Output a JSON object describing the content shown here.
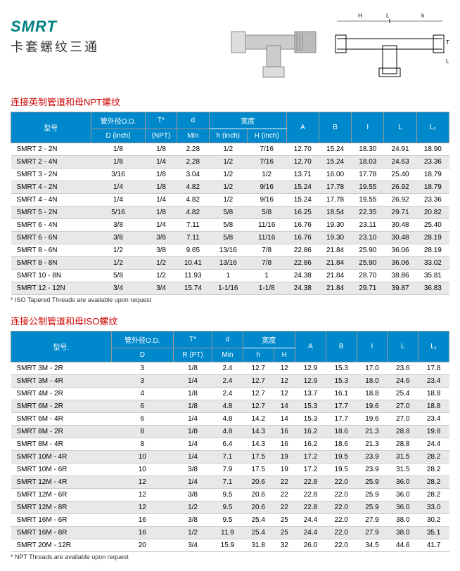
{
  "header": {
    "title": "SMRT",
    "subtitle": "卡套螺纹三通"
  },
  "table1": {
    "title": "连接英制管道和母NPT螺纹",
    "headers": {
      "model": "型号",
      "od": "管外径O.D.",
      "od_sub": "D (inch)",
      "t": "T*",
      "t_sub": "(NPT)",
      "d": "d",
      "d_sub": "Min",
      "width": "宽度",
      "h": "h (inch)",
      "H": "H (inch)",
      "A": "A",
      "B": "B",
      "I": "I",
      "L": "L",
      "L1": "L₁"
    },
    "rows": [
      [
        "SMRT  2 -  2N",
        "1/8",
        "1/8",
        "2.28",
        "1/2",
        "7/16",
        "12.70",
        "15.24",
        "18.30",
        "24.91",
        "18.90"
      ],
      [
        "SMRT  2 -  4N",
        "1/8",
        "1/4",
        "2.28",
        "1/2",
        "7/16",
        "12.70",
        "15.24",
        "18.03",
        "24.63",
        "23.36"
      ],
      [
        "SMRT  3 -  2N",
        "3/16",
        "1/8",
        "3.04",
        "1/2",
        "1/2",
        "13.71",
        "16.00",
        "17.78",
        "25.40",
        "18.79"
      ],
      [
        "SMRT  4 -  2N",
        "1/4",
        "1/8",
        "4.82",
        "1/2",
        "9/16",
        "15.24",
        "17.78",
        "19.55",
        "26.92",
        "18.79"
      ],
      [
        "SMRT  4 -  4N",
        "1/4",
        "1/4",
        "4.82",
        "1/2",
        "9/16",
        "15.24",
        "17.78",
        "19.55",
        "26.92",
        "23.36"
      ],
      [
        "SMRT  5 -  2N",
        "5/16",
        "1/8",
        "4.82",
        "5/8",
        "5/8",
        "16.25",
        "18.54",
        "22.35",
        "29.71",
        "20.82"
      ],
      [
        "SMRT  6 -  4N",
        "3/8",
        "1/4",
        "7.11",
        "5/8",
        "11/16",
        "16.76",
        "19.30",
        "23.11",
        "30.48",
        "25.40"
      ],
      [
        "SMRT  6 -  6N",
        "3/8",
        "3/8",
        "7.11",
        "5/8",
        "11/16",
        "16.76",
        "19.30",
        "23.10",
        "30.48",
        "28.19"
      ],
      [
        "SMRT  8 -  6N",
        "1/2",
        "3/8",
        "9.65",
        "13/16",
        "7/8",
        "22.86",
        "21.84",
        "25.90",
        "36.06",
        "28.19"
      ],
      [
        "SMRT  8 -  8N",
        "1/2",
        "1/2",
        "10.41",
        "13/16",
        "7/8",
        "22.86",
        "21.84",
        "25.90",
        "36.06",
        "33.02"
      ],
      [
        "SMRT 10 -  8N",
        "5/8",
        "1/2",
        "11.93",
        "1",
        "1",
        "24.38",
        "21.84",
        "28.70",
        "38.86",
        "35.81"
      ],
      [
        "SMRT 12 - 12N",
        "3/4",
        "3/4",
        "15.74",
        "1-1/16",
        "1-1/8",
        "24.38",
        "21.84",
        "29.71",
        "39.87",
        "36.83"
      ]
    ],
    "footnote": "* ISO Tapered Threads are available upon request"
  },
  "table2": {
    "title": "连接公制管道和母ISO螺纹",
    "headers": {
      "model": "型号.",
      "od": "管外径O.D.",
      "od_sub": "D",
      "t": "T*",
      "t_sub": "R (PT)",
      "d": "d",
      "d_sub": "Min",
      "width": "宽度",
      "h": "h",
      "H": "H",
      "A": "A",
      "B": "B",
      "I": "I",
      "L": "L",
      "L1": "L₁"
    },
    "rows": [
      [
        "SMRT  3M -  2R",
        "3",
        "1/8",
        "2.4",
        "12.7",
        "12",
        "12.9",
        "15.3",
        "17.0",
        "23.6",
        "17.8"
      ],
      [
        "SMRT  3M -  4R",
        "3",
        "1/4",
        "2.4",
        "12.7",
        "12",
        "12.9",
        "15.3",
        "18.0",
        "24.6",
        "23.4"
      ],
      [
        "SMRT  4M -  2R",
        "4",
        "1/8",
        "2.4",
        "12.7",
        "12",
        "13.7",
        "16.1",
        "18.8",
        "25.4",
        "18.8"
      ],
      [
        "SMRT  6M -  2R",
        "6",
        "1/8",
        "4.8",
        "12.7",
        "14",
        "15.3",
        "17.7",
        "19.6",
        "27.0",
        "18.8"
      ],
      [
        "SMRT  6M -  4R",
        "6",
        "1/4",
        "4.8",
        "14.2",
        "14",
        "15.3",
        "17.7",
        "19.6",
        "27.0",
        "23.4"
      ],
      [
        "SMRT  8M -  2R",
        "8",
        "1/8",
        "4.8",
        "14.3",
        "16",
        "16.2",
        "18.6",
        "21.3",
        "28.8",
        "19.8"
      ],
      [
        "SMRT  8M -  4R",
        "8",
        "1/4",
        "6.4",
        "14.3",
        "16",
        "16.2",
        "18.6",
        "21.3",
        "28.8",
        "24.4"
      ],
      [
        "SMRT 10M -  4R",
        "10",
        "1/4",
        "7.1",
        "17.5",
        "19",
        "17.2",
        "19.5",
        "23.9",
        "31.5",
        "28.2"
      ],
      [
        "SMRT 10M -  6R",
        "10",
        "3/8",
        "7.9",
        "17.5",
        "19",
        "17.2",
        "19.5",
        "23.9",
        "31.5",
        "28.2"
      ],
      [
        "SMRT 12M -  4R",
        "12",
        "1/4",
        "7.1",
        "20.6",
        "22",
        "22.8",
        "22.0",
        "25.9",
        "36.0",
        "28.2"
      ],
      [
        "SMRT 12M -  6R",
        "12",
        "3/8",
        "9.5",
        "20.6",
        "22",
        "22.8",
        "22.0",
        "25.9",
        "36.0",
        "28.2"
      ],
      [
        "SMRT 12M -  8R",
        "12",
        "1/2",
        "9.5",
        "20.6",
        "22",
        "22.8",
        "22.0",
        "25.9",
        "36.0",
        "33.0"
      ],
      [
        "SMRT 16M -  6R",
        "16",
        "3/8",
        "9.5",
        "25.4",
        "25",
        "24.4",
        "22.0",
        "27.9",
        "38.0",
        "30.2"
      ],
      [
        "SMRT 16M -  8R",
        "16",
        "1/2",
        "11.9",
        "25.4",
        "25",
        "24.4",
        "22.0",
        "27.9",
        "38.0",
        "35.1"
      ],
      [
        "SMRT 20M - 12R",
        "20",
        "3/4",
        "15.9",
        "31.8",
        "32",
        "26.0",
        "22.0",
        "34.5",
        "44.6",
        "41.7"
      ]
    ],
    "footnote": "* NPT Threads are available upon request"
  }
}
